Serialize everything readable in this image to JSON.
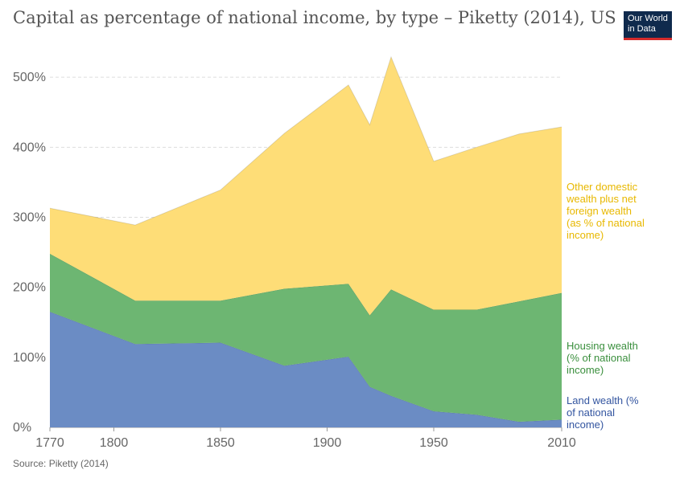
{
  "header": {
    "title": "Capital as percentage of national income, by type – Piketty (2014), US",
    "logo_line1": "Our World",
    "logo_line2": "in Data"
  },
  "footer": {
    "source": "Source: Piketty (2014)"
  },
  "colors": {
    "land": "#6b8cc4",
    "housing": "#6db672",
    "other": "#fedd77",
    "land_text": "#3355a0",
    "housing_text": "#3a8f3d",
    "other_text": "#e8b800"
  },
  "chart_data": {
    "type": "area",
    "stacked": true,
    "title": "Capital as percentage of national income, by type – Piketty (2014), US",
    "xlim": [
      1770,
      2010
    ],
    "ylim": [
      0,
      530
    ],
    "x_ticks": [
      1770,
      1800,
      1850,
      1900,
      1950,
      2010
    ],
    "y_ticks": [
      0,
      100,
      200,
      300,
      400,
      500
    ],
    "y_tick_labels": [
      "0%",
      "100%",
      "200%",
      "300%",
      "400%",
      "500%"
    ],
    "grid": "horizontal-dashed",
    "legend": "right",
    "x": [
      1770,
      1810,
      1850,
      1880,
      1910,
      1920,
      1930,
      1950,
      1970,
      1990,
      2010
    ],
    "series": [
      {
        "name": "Land wealth (% of national income)",
        "key": "land",
        "values": [
          165,
          119,
          121,
          88,
          101,
          58,
          45,
          23,
          18,
          8,
          11
        ]
      },
      {
        "name": "Housing wealth (% of national income)",
        "key": "housing",
        "values": [
          83,
          62,
          60,
          110,
          104,
          102,
          152,
          145,
          150,
          172,
          181
        ]
      },
      {
        "name": "Other domestic wealth plus net foreign wealth (as % of national income)",
        "key": "other",
        "values": [
          65,
          108,
          158,
          222,
          284,
          272,
          332,
          212,
          232,
          239,
          237
        ]
      }
    ],
    "legend_lines": {
      "other": [
        "Other domestic",
        "wealth plus net",
        "foreign wealth",
        "(as % of national",
        "income)"
      ],
      "housing": [
        "Housing wealth",
        "(% of national",
        "income)"
      ],
      "land": [
        "Land wealth (%",
        "of national",
        "income)"
      ]
    }
  }
}
